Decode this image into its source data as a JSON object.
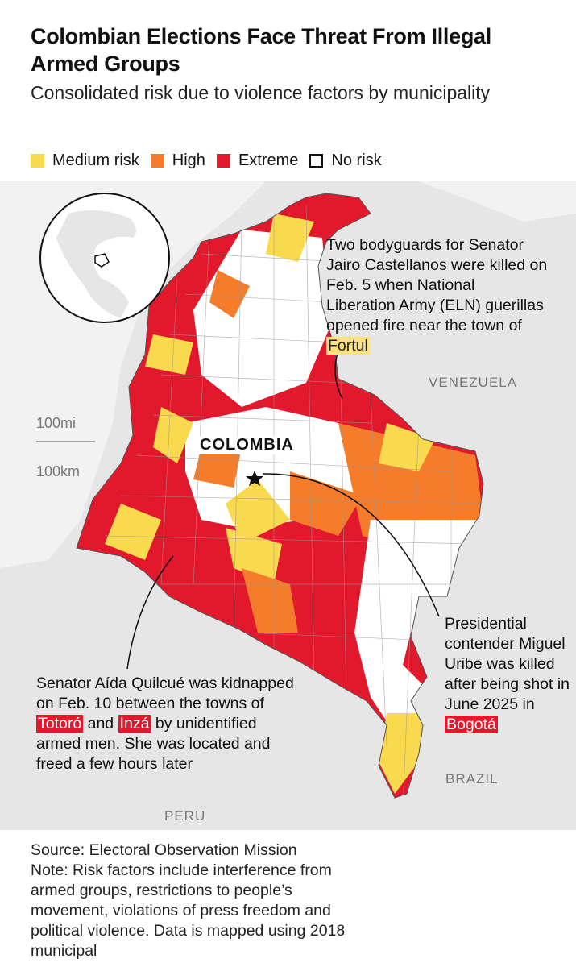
{
  "header": {
    "title": "Colombian Elections Face Threat From Illegal Armed Groups",
    "subtitle": "Consolidated risk due to violence factors by municipality"
  },
  "legend": [
    {
      "label": "Medium risk",
      "color": "#f9d94e"
    },
    {
      "label": "High",
      "color": "#f47c2a"
    },
    {
      "label": "Extreme",
      "color": "#e2182d"
    },
    {
      "label": "No risk",
      "color": "#ffffff"
    }
  ],
  "map": {
    "country_label": "COLOMBIA",
    "neighbor_labels": [
      "VENEZUELA",
      "PERU",
      "BRAZIL"
    ],
    "scale": [
      "100mi",
      "100km"
    ]
  },
  "annotations": [
    {
      "segments": [
        {
          "text": "Two bodyguards for Senator Jairo Castellanos were killed on Feb. 5 when National Liberation Army (ELN) guerillas opened fire near the town of "
        },
        {
          "text": "Fortul",
          "background": "#fbe27e",
          "color": "#222222"
        }
      ]
    },
    {
      "segments": [
        {
          "text": "Senator Aída Quilcué was kidnapped on Feb. 10 between the towns of "
        },
        {
          "text": "Totoró",
          "background": "#e2182d",
          "color": "#ffffff"
        },
        {
          "text": " and "
        },
        {
          "text": "Inzá",
          "background": "#e2182d",
          "color": "#ffffff"
        },
        {
          "text": " by unidentified armed men. She was located and freed a few hours later"
        }
      ]
    },
    {
      "segments": [
        {
          "text": "Presidential contender Miguel Uribe was killed after being shot in June 2025 in "
        },
        {
          "text": "Bogotá",
          "background": "#e2182d",
          "color": "#ffffff"
        }
      ]
    }
  ],
  "footer": {
    "source": "Source: Electoral Observation Mission",
    "note": "Note: Risk factors include interference from armed groups, restrictions to people’s movement, violations of press freedom and political violence. Data is mapped using 2018 municipal"
  }
}
